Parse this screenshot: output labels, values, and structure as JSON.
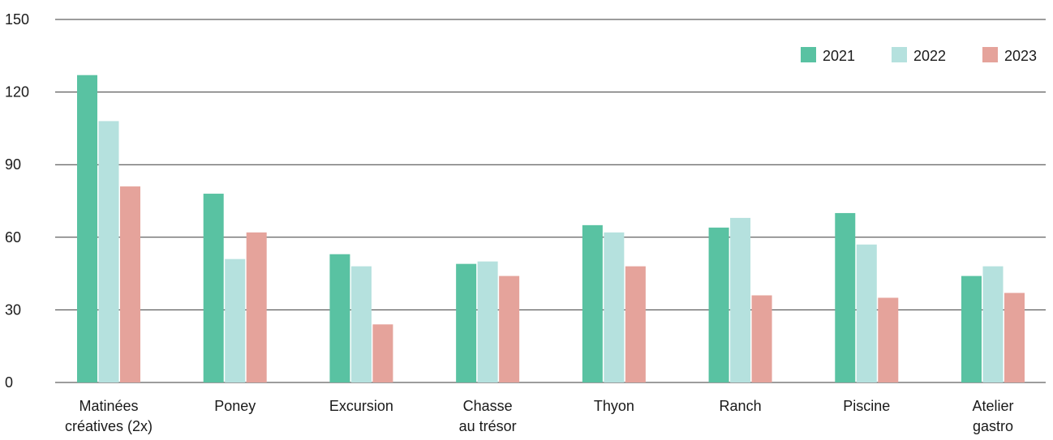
{
  "chart_data": {
    "type": "bar",
    "categories": [
      [
        "Matinées",
        "créatives (2x)"
      ],
      [
        "Poney"
      ],
      [
        "Excursion"
      ],
      [
        "Chasse",
        "au trésor"
      ],
      [
        "Thyon"
      ],
      [
        "Ranch"
      ],
      [
        "Piscine"
      ],
      [
        "Atelier",
        "gastro"
      ]
    ],
    "series": [
      {
        "name": "2021",
        "color": "#59c2a2",
        "values": [
          127,
          78,
          53,
          49,
          65,
          64,
          70,
          44
        ]
      },
      {
        "name": "2022",
        "color": "#b5e1de",
        "values": [
          108,
          51,
          48,
          50,
          62,
          68,
          57,
          48
        ]
      },
      {
        "name": "2023",
        "color": "#e5a39b",
        "values": [
          81,
          62,
          24,
          44,
          48,
          36,
          35,
          37
        ]
      }
    ],
    "ylim": [
      0,
      150
    ],
    "yticks": [
      "0",
      "30",
      "60",
      "90",
      "120",
      "150"
    ],
    "grid": true,
    "legend_position": "top-right"
  }
}
